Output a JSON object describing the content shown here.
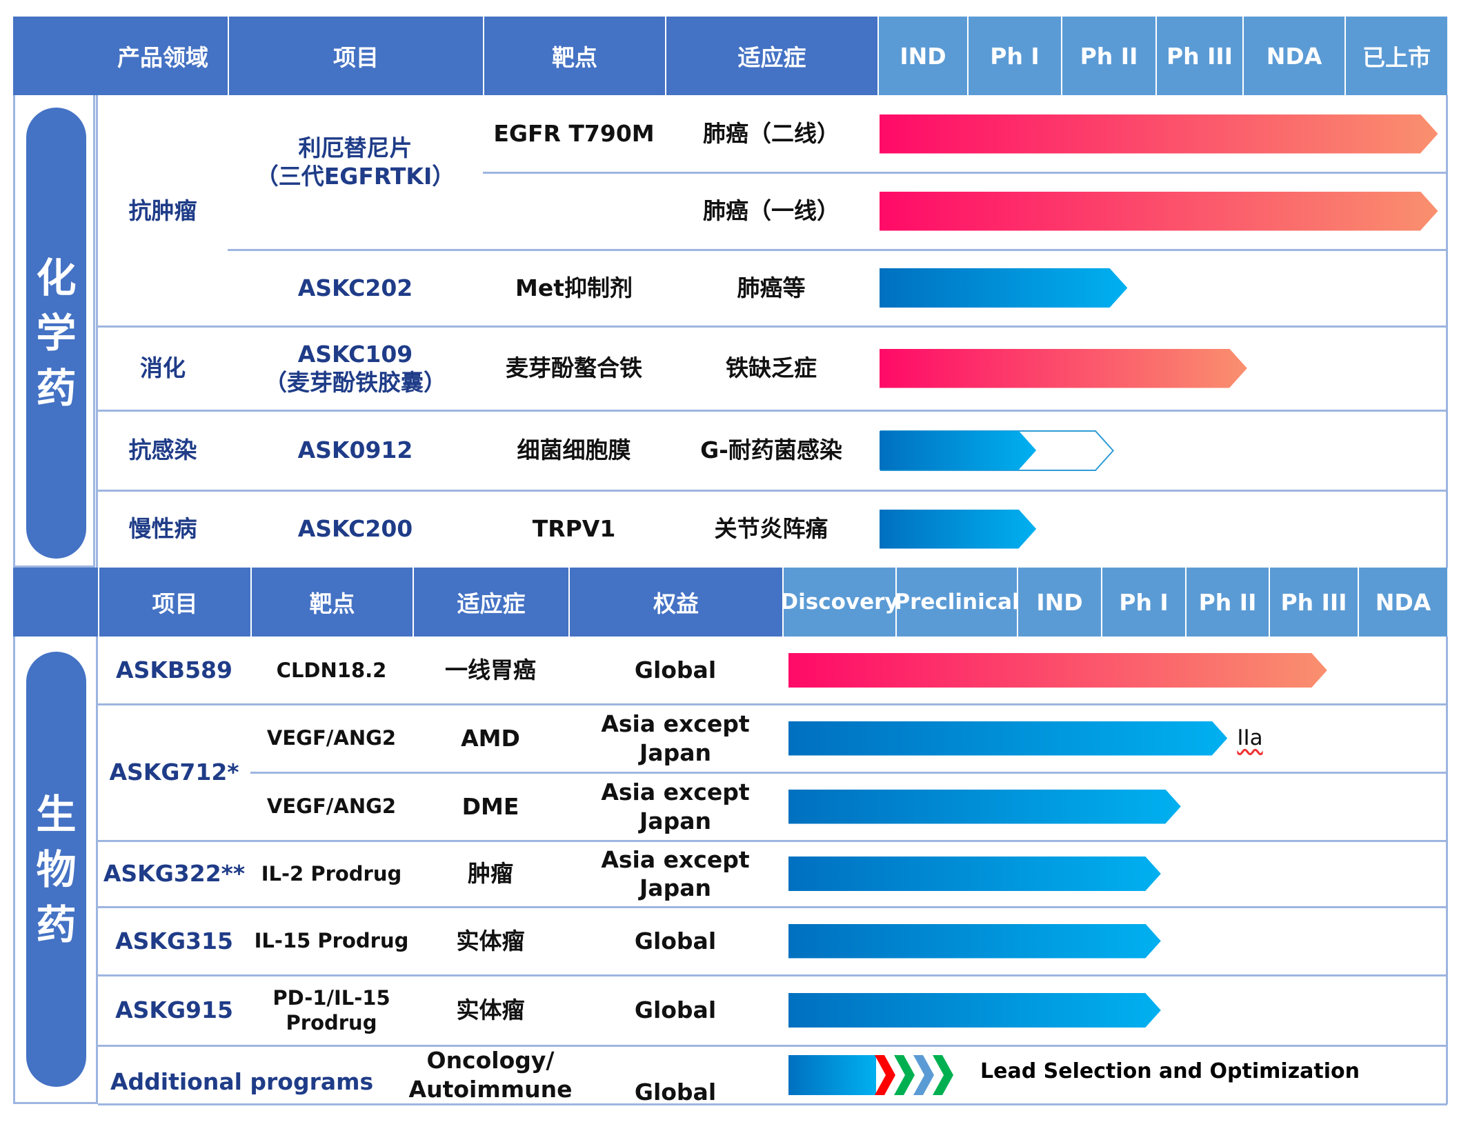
{
  "colors": {
    "header": "#4472C4",
    "phase_header": "#5B9BD5",
    "pink_start": "#FF0A68",
    "pink_end": "#F9906E",
    "blue_start": "#0070C0",
    "blue_end": "#00B0F0"
  },
  "chem": {
    "section_label": "化学药",
    "headers": [
      "产品领域",
      "项目",
      "靶点",
      "适应症"
    ],
    "phases": [
      "IND",
      "Ph I",
      "Ph II",
      "Ph III",
      "NDA",
      "已上市"
    ],
    "categories": [
      "抗肿瘤",
      "消化",
      "抗感染",
      "慢性病"
    ],
    "rows": [
      {
        "item": "利厄替尼片\n（三代EGFRTKI）",
        "target": "EGFR T790M",
        "indication": "肺癌（二线）",
        "color": "pink",
        "progress": 0.98
      },
      {
        "item": "",
        "target": "",
        "indication": "肺癌（一线）",
        "color": "pink",
        "progress": 0.98
      },
      {
        "item": "ASKC202",
        "target": "Met抑制剂",
        "indication": "肺癌等",
        "color": "blue",
        "progress": 0.435
      },
      {
        "item": "ASKC109\n（麦芽酚铁胶囊）",
        "target": "麦芽酚螯合铁",
        "indication": "铁缺乏症",
        "color": "pink",
        "progress": 0.645
      },
      {
        "item": "ASK0912",
        "target": "细菌细胞膜",
        "indication": "G-耐药菌感染",
        "color": "blue",
        "progress": 0.275,
        "outline_progress": 0.41
      },
      {
        "item": "ASKC200",
        "target": "TRPV1",
        "indication": "关节炎阵痛",
        "color": "blue",
        "progress": 0.275
      }
    ]
  },
  "bio": {
    "section_label": "生物药",
    "headers": [
      "项目",
      "靶点",
      "适应症",
      "权益"
    ],
    "phases": [
      "Discovery",
      "Preclinical",
      "IND",
      "Ph I",
      "Ph II",
      "Ph III",
      "NDA"
    ],
    "rows": [
      {
        "item": "ASKB589",
        "target": "CLDN18.2",
        "indication": "一线胃癌",
        "rights": "Global",
        "color": "pink",
        "progress": 0.81
      },
      {
        "item": "ASKG712*",
        "target": "VEGF/ANG2",
        "indication": "AMD",
        "rights": "Asia except Japan",
        "color": "blue",
        "progress": 0.66,
        "note": "IIa"
      },
      {
        "item": "",
        "target": "VEGF/ANG2",
        "indication": "DME",
        "rights": "Asia except Japan",
        "color": "blue",
        "progress": 0.59
      },
      {
        "item": "ASKG322**",
        "target": "IL-2 Prodrug",
        "indication": "肿瘤",
        "rights": "Asia except Japan",
        "color": "blue",
        "progress": 0.56
      },
      {
        "item": "ASKG315",
        "target": "IL-15 Prodrug",
        "indication": "实体瘤",
        "rights": "Global",
        "color": "blue",
        "progress": 0.56
      },
      {
        "item": "ASKG915",
        "target": "PD-1/IL-15\nProdrug",
        "indication": "实体瘤",
        "rights": "Global",
        "color": "blue",
        "progress": 0.56
      },
      {
        "item": "Additional programs",
        "target": "",
        "indication": "Oncology/\nAutoimmune",
        "rights": "Global",
        "color": "blue",
        "progress": 0.13,
        "status": "Lead Selection and Optimization"
      }
    ]
  }
}
